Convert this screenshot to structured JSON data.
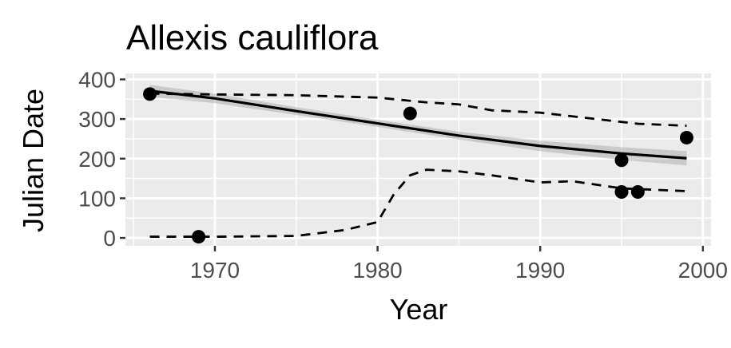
{
  "chart_data": {
    "type": "scatter",
    "title": "Allexis cauliflora",
    "xlabel": "Year",
    "ylabel": "Julian Date",
    "xlim": [
      1964.5,
      2000.5
    ],
    "ylim": [
      -20,
      415
    ],
    "x_ticks": [
      1970,
      1980,
      1990,
      2000
    ],
    "x_tick_labels": [
      "1970",
      "1980",
      "1990",
      "2000"
    ],
    "y_ticks": [
      0,
      100,
      200,
      300,
      400
    ],
    "y_tick_labels": [
      "0",
      "100",
      "200",
      "300",
      "400"
    ],
    "grid": true,
    "legend": "none",
    "points": [
      {
        "x": 1966,
        "y": 363
      },
      {
        "x": 1969,
        "y": 3
      },
      {
        "x": 1982,
        "y": 314
      },
      {
        "x": 1995,
        "y": 196
      },
      {
        "x": 1995,
        "y": 116
      },
      {
        "x": 1996,
        "y": 116
      },
      {
        "x": 1999,
        "y": 253
      }
    ],
    "trend_line": {
      "x": [
        1966,
        1970,
        1975,
        1980,
        1985,
        1990,
        1995,
        1999
      ],
      "y": [
        371,
        352,
        320,
        289,
        258,
        232,
        213,
        201
      ]
    },
    "confidence_band": {
      "x": [
        1966,
        1970,
        1975,
        1980,
        1985,
        1990,
        1995,
        1999
      ],
      "upper": [
        386,
        364,
        330,
        298,
        268,
        245,
        229,
        219
      ],
      "lower": [
        356,
        340,
        310,
        280,
        248,
        219,
        197,
        183
      ]
    },
    "upper_quantile_line": {
      "x": [
        1966,
        1970,
        1975,
        1980,
        1983,
        1985,
        1987,
        1990,
        1993,
        1996,
        1999
      ],
      "y": [
        364,
        362,
        360,
        354,
        342,
        337,
        322,
        316,
        302,
        288,
        283
      ]
    },
    "lower_quantile_line": {
      "x": [
        1966,
        1970,
        1975,
        1978,
        1980,
        1981,
        1982,
        1983,
        1985,
        1987,
        1990,
        1992,
        1995,
        1999
      ],
      "y": [
        3,
        3,
        5,
        20,
        40,
        110,
        158,
        172,
        168,
        158,
        140,
        143,
        125,
        118
      ]
    },
    "colors": {
      "panel_background": "#ebebeb",
      "grid": "#ffffff",
      "points": "#000000",
      "trend_line": "#000000",
      "band": "#999999",
      "tick_mark": "#333333"
    }
  }
}
